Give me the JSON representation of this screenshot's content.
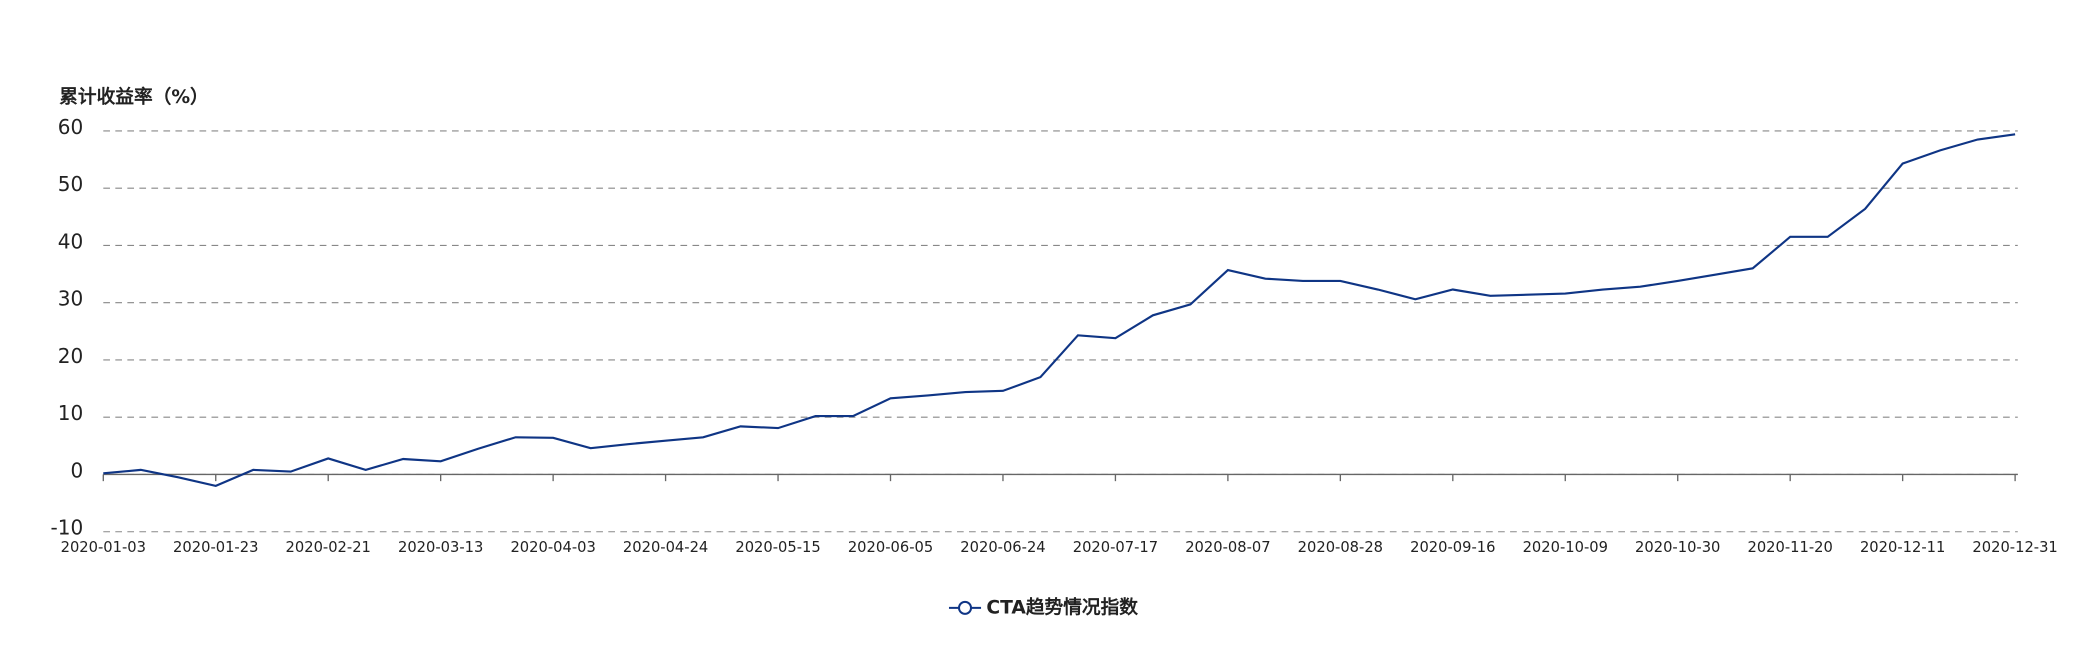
{
  "chart_data": {
    "type": "line",
    "y_axis_label": "累计收益率（%）",
    "categories": [
      "2020-01-03",
      null,
      null,
      "2020-01-23",
      null,
      null,
      "2020-02-21",
      null,
      null,
      "2020-03-13",
      null,
      null,
      "2020-04-03",
      null,
      null,
      "2020-04-24",
      null,
      null,
      "2020-05-15",
      null,
      null,
      "2020-06-05",
      null,
      null,
      "2020-06-24",
      null,
      null,
      "2020-07-17",
      null,
      null,
      "2020-08-07",
      null,
      null,
      "2020-08-28",
      null,
      null,
      "2020-09-16",
      null,
      null,
      "2020-10-09",
      null,
      null,
      "2020-10-30",
      null,
      null,
      "2020-11-20",
      null,
      null,
      "2020-12-11",
      null,
      null,
      "2020-12-31"
    ],
    "series": [
      {
        "name": "CTA趋势情况指数",
        "color": "#0f3585",
        "values": [
          0.2,
          0.8,
          -0.5,
          -2.0,
          0.8,
          0.5,
          2.8,
          0.8,
          2.7,
          2.3,
          4.5,
          6.5,
          6.4,
          4.6,
          5.3,
          5.9,
          6.5,
          8.4,
          8.1,
          10.2,
          10.2,
          13.3,
          13.8,
          14.4,
          14.6,
          17.0,
          24.3,
          23.8,
          27.8,
          29.7,
          35.7,
          34.2,
          33.8,
          33.8,
          32.3,
          30.6,
          32.3,
          31.2,
          31.4,
          31.6,
          32.3,
          32.8,
          33.8,
          34.9,
          36.0,
          41.5,
          41.5,
          46.4,
          54.3,
          56.6,
          58.5,
          59.4
        ]
      }
    ],
    "ylim": [
      -10,
      60
    ],
    "yticks": [
      -10,
      0,
      10,
      20,
      30,
      40,
      50,
      60
    ],
    "grid": true,
    "legend": "bottom"
  }
}
